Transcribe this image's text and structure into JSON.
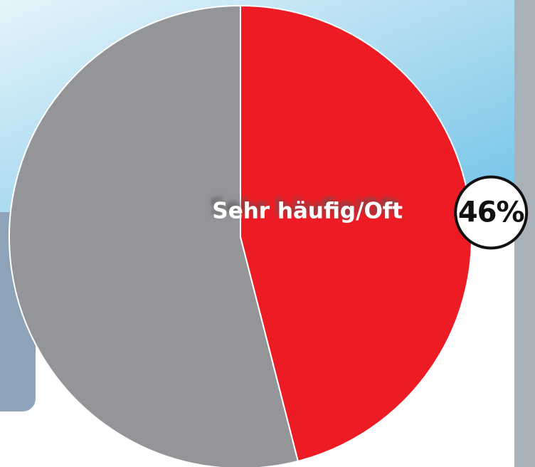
{
  "chart_data": {
    "type": "pie",
    "categories": [
      "Sehr häufig/Oft",
      null
    ],
    "values": [
      46,
      54
    ],
    "value_labels": [
      "46%",
      null
    ],
    "colors": [
      "#ed1c24",
      "#939598"
    ]
  }
}
